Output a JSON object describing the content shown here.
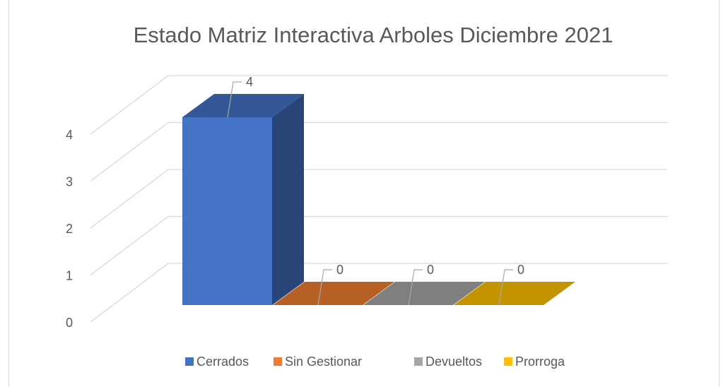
{
  "chart_data": {
    "type": "bar3d",
    "title": "Estado Matriz Interactiva Arboles Diciembre 2021",
    "categories": [
      "Cerrados",
      "Sin Gestionar",
      "Devueltos",
      "Prorroga"
    ],
    "values": [
      4,
      0,
      0,
      0
    ],
    "colors": [
      "#4472c4",
      "#ed7d31",
      "#a5a5a5",
      "#ffc000"
    ],
    "ylim": [
      0,
      4
    ],
    "yticks": [
      0,
      1,
      2,
      3,
      4
    ],
    "grid": true,
    "legend": "bottom"
  }
}
